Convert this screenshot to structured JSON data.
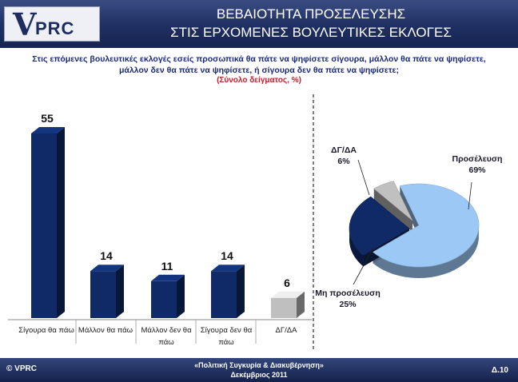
{
  "logo": {
    "text": "PRC"
  },
  "header": {
    "title_line1": "ΒΕΒΑΙΟΤΗΤΑ ΠΡΟΣΕΛΕΥΣΗΣ",
    "title_line2": "ΣΤΙΣ ΕΡΧΟΜΕΝΕΣ ΒΟΥΛΕΥΤΙΚΕΣ ΕΚΛΟΓΕΣ"
  },
  "question": {
    "line1": "Στις επόμενες βουλευτικές εκλογές εσείς προσωπικά θα πάτε να ψηφίσετε σίγουρα, μάλλον θα πάτε να ψηφίσετε,",
    "line2": "μάλλον δεν θα πάτε να ψηφίσετε, ή σίγουρα δεν θα πάτε να ψηφίσετε;",
    "sample": "(Σύνολο δείγματος, %)"
  },
  "colors": {
    "navy": "#0f2a66",
    "navy_dark": "#08183f",
    "grey": "#bfbfbf",
    "light_blue": "#9cc8f5"
  },
  "chart_data": [
    {
      "type": "bar",
      "categories": [
        [
          "Σίγουρα θα πάω"
        ],
        [
          "Μάλλον θα πάω"
        ],
        [
          "Μάλλον δεν θα",
          "πάω"
        ],
        [
          "Σίγουρα δεν θα",
          "πάω"
        ],
        [
          "ΔΓ/ΔΑ"
        ]
      ],
      "values": [
        55,
        14,
        11,
        14,
        6
      ],
      "colors": [
        "#0f2a66",
        "#0f2a66",
        "#0f2a66",
        "#0f2a66",
        "#bfbfbf"
      ],
      "ylim": [
        0,
        60
      ]
    },
    {
      "type": "pie",
      "slices": [
        {
          "label": "Προσέλευση",
          "value": 69,
          "display": "69%",
          "color": "#9cc8f5"
        },
        {
          "label": "Μη προσέλευση",
          "value": 25,
          "display": "25%",
          "color": "#0f2a66"
        },
        {
          "label": "ΔΓ/ΔΑ",
          "value": 6,
          "display": "6%",
          "color": "#c0c0c0"
        }
      ]
    }
  ],
  "footer": {
    "copyright": "© VPRC",
    "line1": "«Πολιτική Συγκυρία & Διακυβέρνηση»",
    "line2": "Δεκέμβριος  2011",
    "page": "Δ.10"
  }
}
